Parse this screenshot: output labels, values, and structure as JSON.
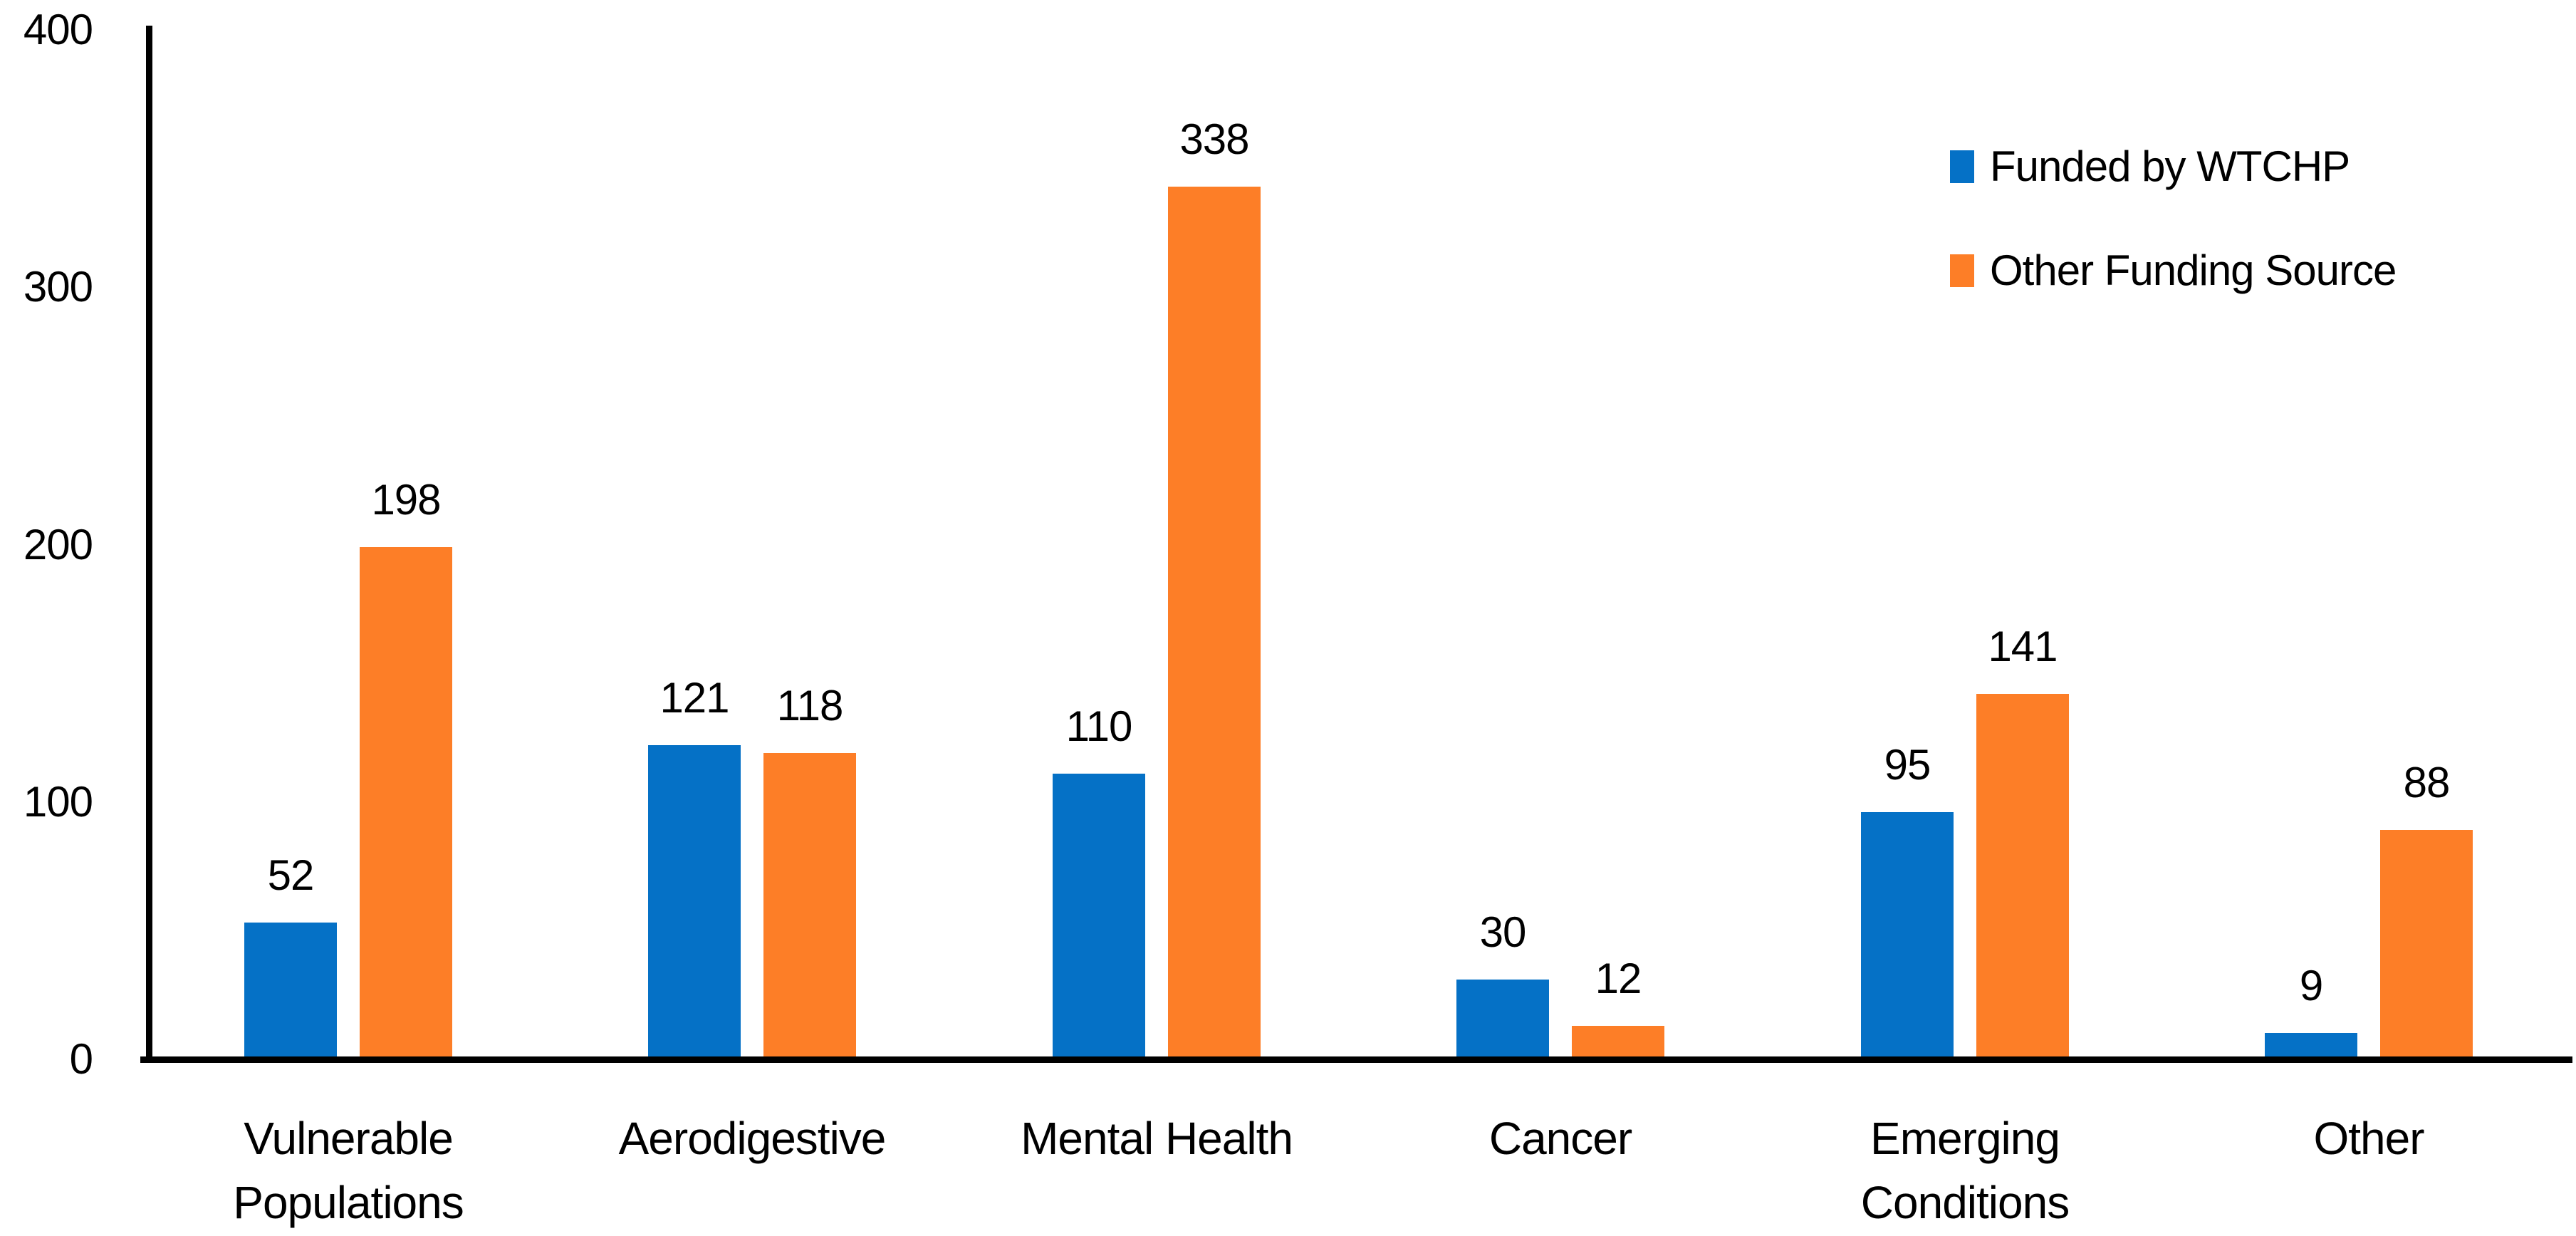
{
  "chart_data": {
    "type": "bar",
    "title": "",
    "xlabel": "",
    "ylabel": "",
    "categories": [
      "Vulnerable Populations",
      "Aerodigestive",
      "Mental Health",
      "Cancer",
      "Emerging Conditions",
      "Other"
    ],
    "series": [
      {
        "name": "Funded by WTCHP",
        "color": "#0571C6",
        "values": [
          52,
          121,
          110,
          30,
          95,
          9
        ]
      },
      {
        "name": "Other Funding Source",
        "color": "#FD7E27",
        "values": [
          198,
          118,
          338,
          12,
          141,
          88
        ]
      }
    ],
    "ylim": [
      0,
      400
    ],
    "yticks": [
      0,
      100,
      200,
      300,
      400
    ],
    "grid": false,
    "legend_position": "top-right",
    "data_labels": true,
    "axis_color": "#000000",
    "text_color": "#000000"
  }
}
